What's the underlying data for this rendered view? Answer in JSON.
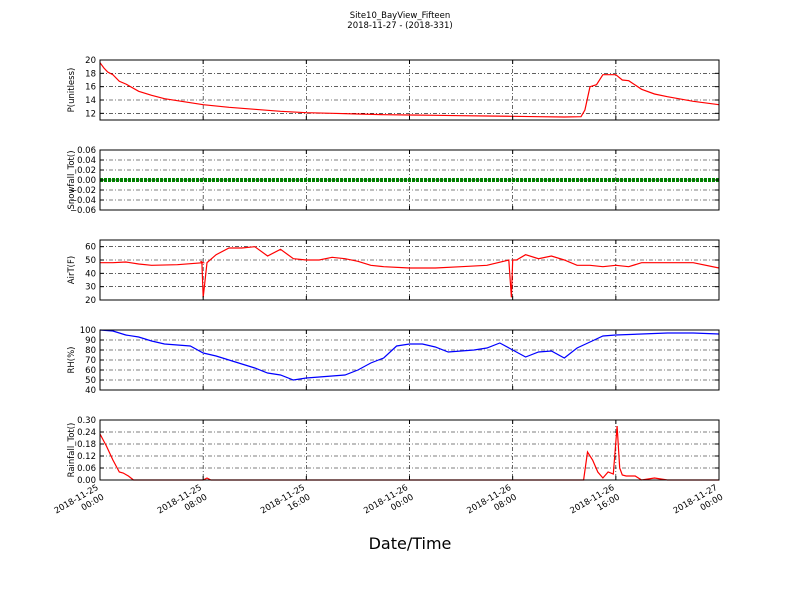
{
  "figure": {
    "title": "Site10_BayView_Fifteen",
    "subtitle": "2018-11-27 - (2018-331)",
    "xlabel": "Date/Time"
  },
  "chart_data": [
    {
      "type": "line",
      "ylabel": "P(unitless)",
      "ylim": [
        11,
        20
      ],
      "yticks": [
        "12",
        "14",
        "16",
        "18",
        "20"
      ],
      "ytick_values": [
        12,
        14,
        16,
        18,
        20
      ],
      "color": "#ff0000",
      "grid": true,
      "x": [
        0,
        0.3,
        0.6,
        1,
        1.5,
        2,
        3,
        4,
        5,
        6,
        7,
        8,
        10,
        12,
        14,
        16,
        18,
        20,
        22,
        24,
        26,
        28,
        30,
        32,
        34,
        36,
        37.3,
        37.6,
        38,
        38.5,
        39,
        40,
        40.5,
        41,
        42,
        43,
        44,
        46,
        48
      ],
      "values": [
        19.6,
        18.8,
        18.2,
        17.8,
        16.8,
        16.4,
        15.3,
        14.7,
        14.2,
        13.9,
        13.6,
        13.3,
        12.9,
        12.6,
        12.3,
        12.1,
        12.0,
        11.9,
        11.8,
        11.75,
        11.7,
        11.65,
        11.6,
        11.55,
        11.5,
        11.45,
        11.5,
        12.5,
        16.0,
        16.3,
        17.8,
        17.8,
        17.0,
        16.9,
        15.6,
        14.9,
        14.5,
        13.8,
        13.3
      ],
      "xticks": [
        "2018-11-25\n00:00",
        "2018-11-25\n08:00",
        "2018-11-25\n16:00",
        "2018-11-26\n00:00",
        "2018-11-26\n08:00",
        "2018-11-26\n16:00",
        "2018-11-27\n00:00"
      ]
    },
    {
      "type": "line",
      "ylabel": "Snowfall_Tot()",
      "ylim": [
        -0.06,
        0.06
      ],
      "yticks": [
        "0.06",
        "0.04",
        "0.02",
        "0.00",
        "−0.02",
        "−0.04",
        "−0.06"
      ],
      "ytick_values": [
        0.06,
        0.04,
        0.02,
        0.0,
        -0.02,
        -0.04,
        -0.06
      ],
      "color": "#008000",
      "grid": true,
      "x": [
        0,
        48
      ],
      "values": [
        0,
        0
      ]
    },
    {
      "type": "line",
      "ylabel": "AirT(F)",
      "ylim": [
        20,
        65
      ],
      "yticks": [
        "60",
        "50",
        "40",
        "30",
        "20"
      ],
      "ytick_values": [
        60,
        50,
        40,
        30,
        20
      ],
      "color": "#ff0000",
      "grid": true,
      "x": [
        0,
        1,
        2,
        3,
        4,
        6,
        8,
        7.8,
        7.9,
        8.0,
        8.3,
        9,
        10,
        11,
        12,
        13,
        14,
        15,
        16,
        17,
        18,
        19,
        20,
        21,
        22,
        24,
        26,
        28,
        30,
        31.7,
        31.9,
        32,
        32.3,
        33,
        34,
        35,
        36,
        37,
        38,
        39,
        40,
        41,
        42,
        44,
        46,
        48
      ],
      "values": [
        48,
        48,
        48.5,
        47,
        46,
        46.5,
        48,
        49,
        48,
        22,
        48,
        54,
        59,
        59,
        60,
        53,
        58,
        51,
        50,
        50,
        52,
        51,
        49,
        46,
        45,
        44,
        44,
        45,
        46,
        50,
        22,
        50,
        50,
        54,
        51,
        53,
        50,
        46,
        46,
        45,
        46,
        45,
        48,
        48,
        48,
        44
      ],
      "xticks": [
        "2018-11-25\n00:00",
        "2018-11-25\n08:00",
        "2018-11-25\n16:00",
        "2018-11-26\n00:00",
        "2018-11-26\n08:00",
        "2018-11-26\n16:00",
        "2018-11-27\n00:00"
      ]
    },
    {
      "type": "line",
      "ylabel": "RH(%)",
      "ylim": [
        40,
        100
      ],
      "yticks": [
        "100",
        "90",
        "80",
        "70",
        "60",
        "50",
        "40"
      ],
      "ytick_values": [
        100,
        90,
        80,
        70,
        60,
        50,
        40
      ],
      "color": "#0000ff",
      "grid": true,
      "x": [
        0,
        1,
        2,
        3,
        4,
        5,
        6,
        7,
        8,
        9,
        10,
        11,
        12,
        13,
        14,
        15,
        16,
        17,
        18,
        19,
        20,
        21,
        22,
        23,
        24,
        25,
        26,
        27,
        28,
        29,
        30,
        31,
        32,
        33,
        34,
        35,
        36,
        37,
        38,
        39,
        40,
        42,
        44,
        46,
        48
      ],
      "values": [
        100,
        99,
        95,
        93,
        89,
        86,
        85,
        84,
        77,
        74,
        70,
        66,
        62,
        57,
        55,
        50,
        52,
        53,
        54,
        55,
        60,
        67,
        72,
        84,
        86,
        86,
        83,
        78,
        79,
        80,
        82,
        87,
        80,
        73,
        78,
        79,
        72,
        82,
        88,
        94,
        95,
        96,
        97,
        97,
        96
      ],
      "xticks": [
        "2018-11-25\n00:00",
        "2018-11-25\n08:00",
        "2018-11-25\n16:00",
        "2018-11-26\n00:00",
        "2018-11-26\n08:00",
        "2018-11-26\n16:00",
        "2018-11-27\n00:00"
      ]
    },
    {
      "type": "line",
      "ylabel": "Rainfall_Tot()",
      "ylim": [
        0,
        0.3
      ],
      "yticks": [
        "0.30",
        "0.24",
        "0.18",
        "0.12",
        "0.06",
        "0.00"
      ],
      "ytick_values": [
        0.3,
        0.24,
        0.18,
        0.12,
        0.06,
        0.0
      ],
      "color": "#ff0000",
      "grid": true,
      "x": [
        0,
        0.5,
        1,
        1.5,
        1.8,
        2.2,
        2.6,
        3,
        8,
        8.3,
        8.6,
        9,
        37.5,
        37.8,
        38.2,
        38.6,
        39,
        39.4,
        39.8,
        40.1,
        40.3,
        40.5,
        40.8,
        41.5,
        42,
        43,
        44,
        45,
        48
      ],
      "values": [
        0.23,
        0.17,
        0.1,
        0.04,
        0.035,
        0.02,
        0.0,
        0.0,
        0.0,
        0.01,
        0.0,
        0.0,
        0.0,
        0.14,
        0.1,
        0.04,
        0.01,
        0.04,
        0.03,
        0.27,
        0.06,
        0.025,
        0.02,
        0.02,
        0.0,
        0.01,
        0.0,
        0.0,
        0.0
      ],
      "xticks": [
        "2018-11-25\n00:00",
        "2018-11-25\n08:00",
        "2018-11-25\n16:00",
        "2018-11-26\n00:00",
        "2018-11-26\n08:00",
        "2018-11-26\n16:00",
        "2018-11-27\n00:00"
      ]
    }
  ]
}
